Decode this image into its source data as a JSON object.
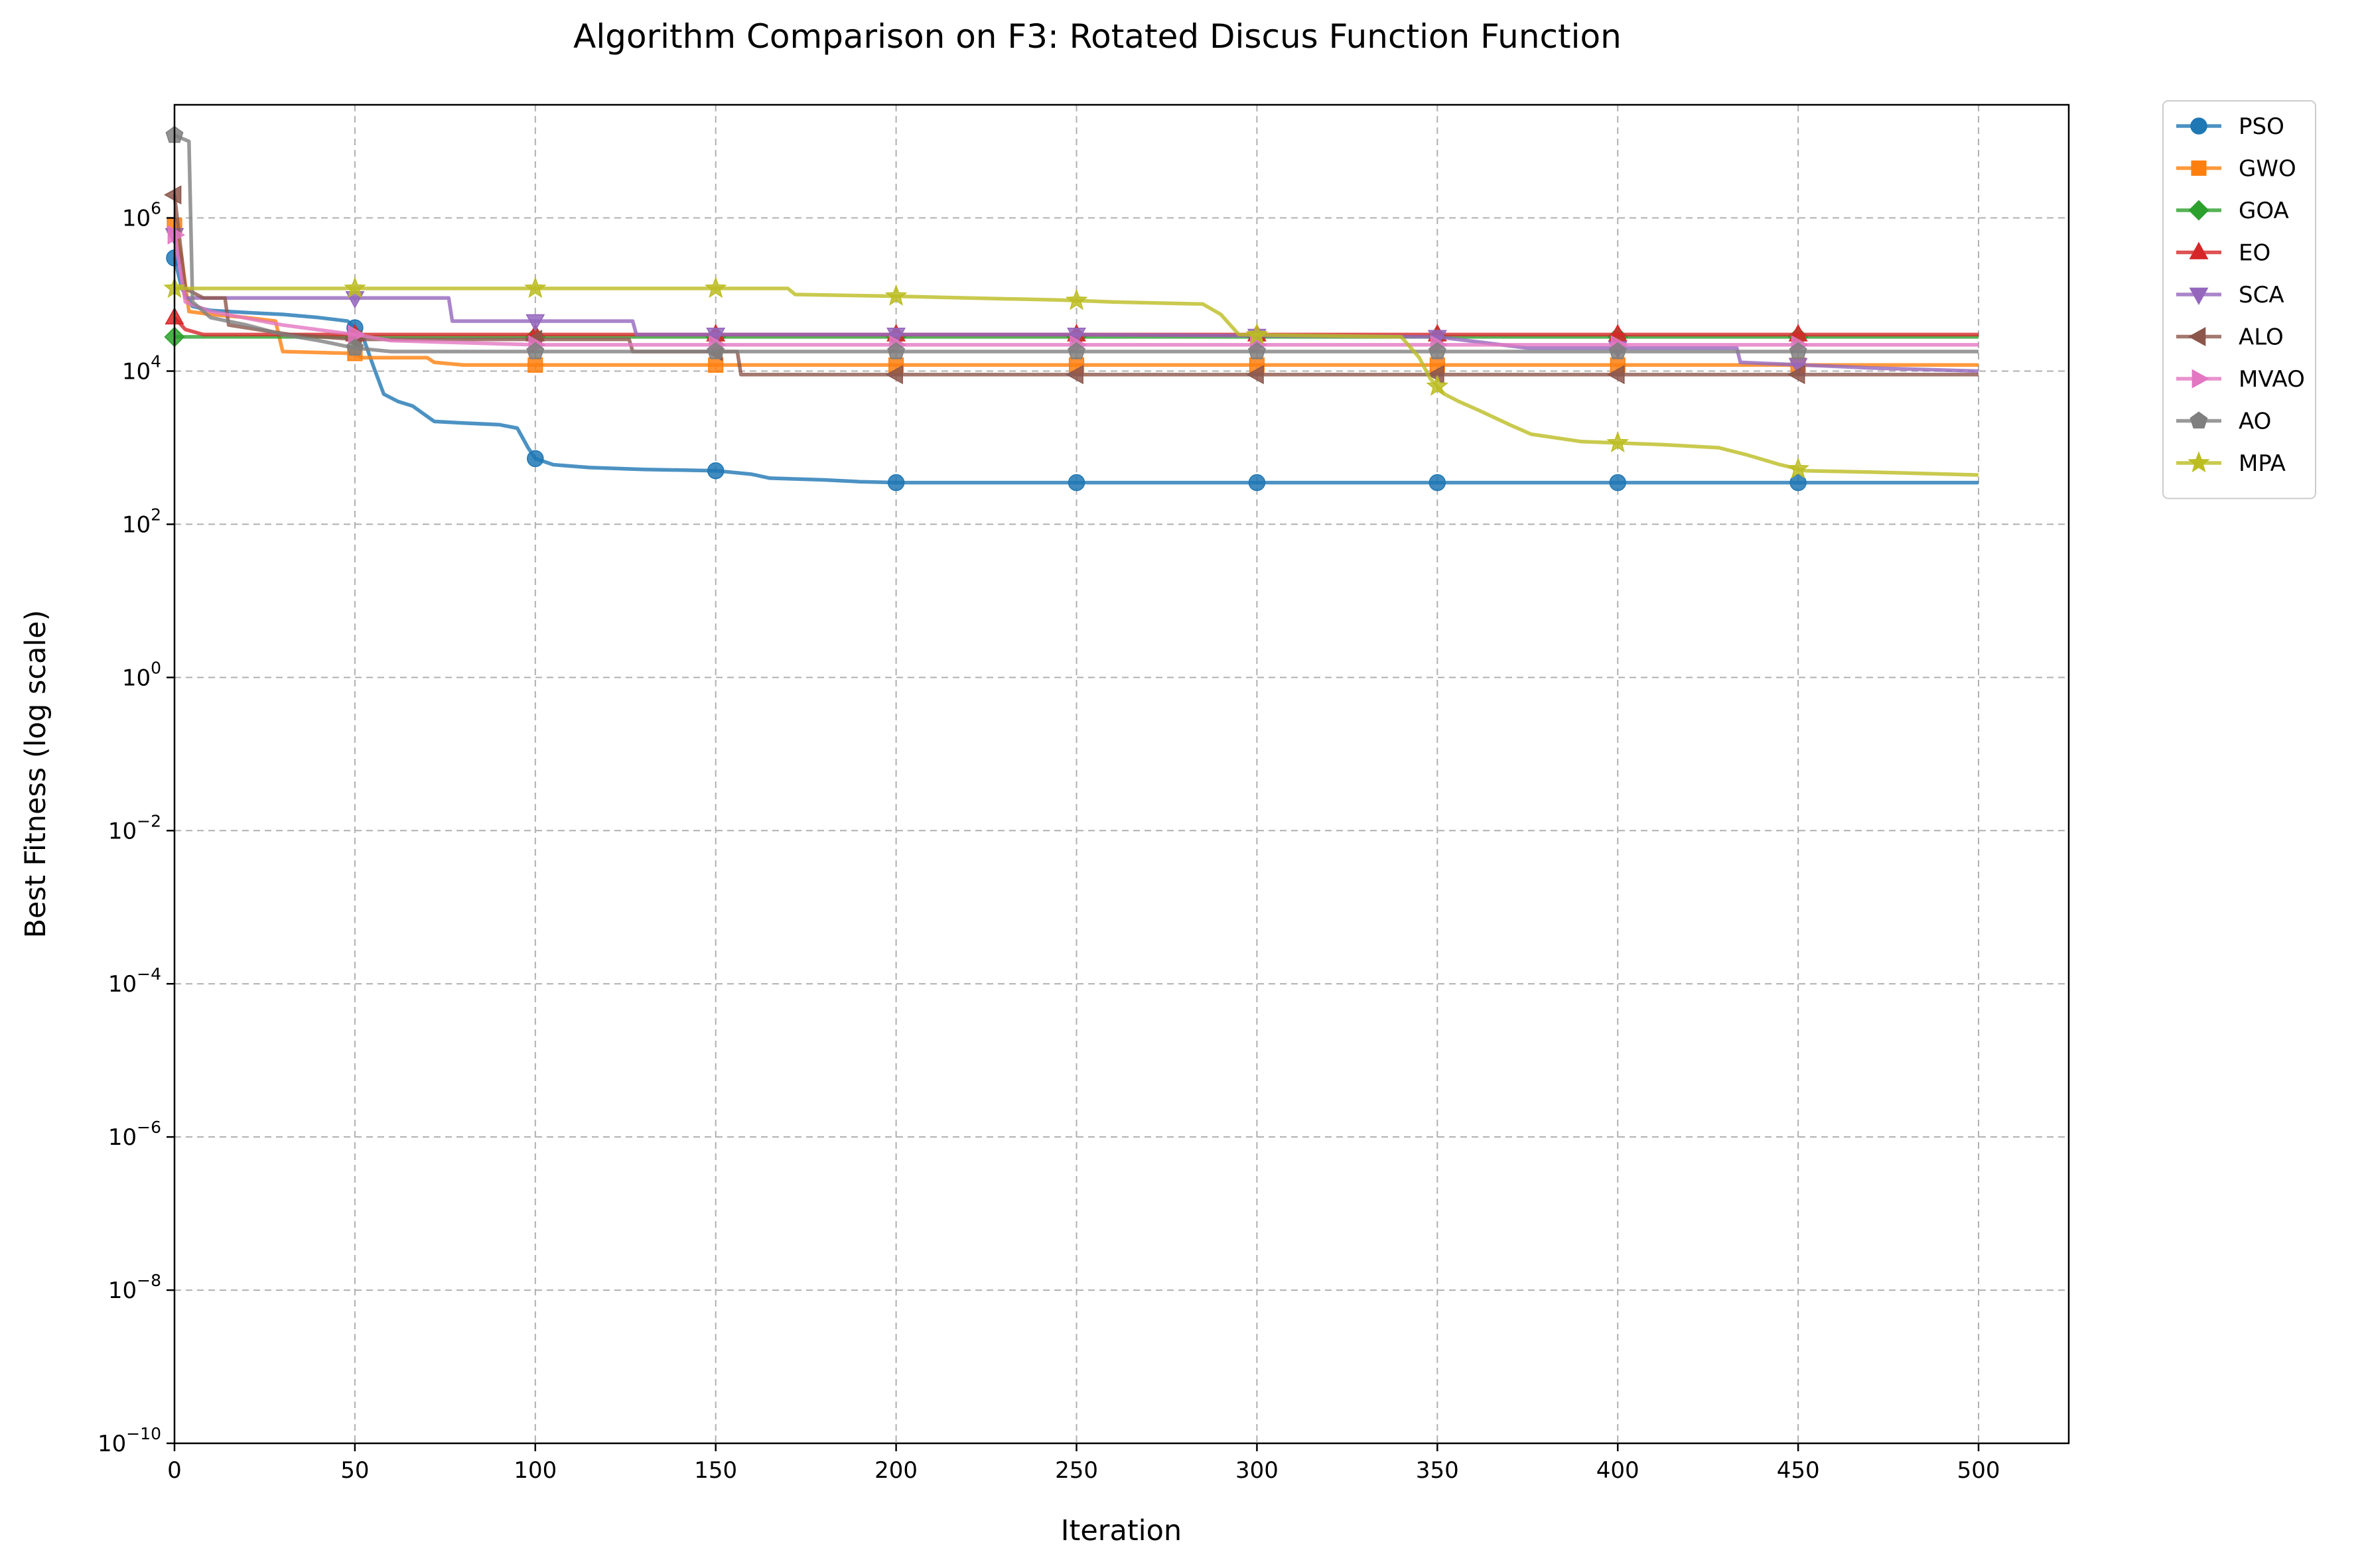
{
  "chart_data": {
    "type": "line",
    "title": "Algorithm Comparison on F3: Rotated Discus Function Function",
    "xlabel": "Iteration",
    "ylabel": "Best Fitness (log scale)",
    "xlim": [
      0,
      525
    ],
    "ylim": [
      1e-10,
      30000000.0
    ],
    "yscale": "log",
    "grid": true,
    "legend_position": "outside-top-right",
    "x_ticks": [
      0,
      50,
      100,
      150,
      200,
      250,
      300,
      350,
      400,
      450,
      500
    ],
    "x_tick_labels": [
      "0",
      "50",
      "100",
      "150",
      "200",
      "250",
      "300",
      "350",
      "400",
      "450",
      "500"
    ],
    "y_ticks": [
      {
        "value": 1e-10,
        "base": "10",
        "exp": "−10"
      },
      {
        "value": 1e-08,
        "base": "10",
        "exp": "−8"
      },
      {
        "value": 1e-06,
        "base": "10",
        "exp": "−6"
      },
      {
        "value": 0.0001,
        "base": "10",
        "exp": "−4"
      },
      {
        "value": 0.01,
        "base": "10",
        "exp": "−2"
      },
      {
        "value": 1,
        "base": "10",
        "exp": "0"
      },
      {
        "value": 100,
        "base": "10",
        "exp": "2"
      },
      {
        "value": 10000,
        "base": "10",
        "exp": "4"
      },
      {
        "value": 1000000,
        "base": "10",
        "exp": "6"
      }
    ],
    "marker_x": [
      0,
      50,
      100,
      150,
      200,
      250,
      300,
      350,
      400,
      450
    ],
    "series": [
      {
        "name": "PSO",
        "color": "#1f77b4",
        "marker": "circle",
        "points": [
          [
            0,
            300000
          ],
          [
            2,
            120000
          ],
          [
            5,
            70000
          ],
          [
            10,
            62000
          ],
          [
            20,
            58000
          ],
          [
            30,
            55000
          ],
          [
            40,
            50000
          ],
          [
            48,
            45000
          ],
          [
            52,
            30000
          ],
          [
            55,
            12000
          ],
          [
            58,
            5000
          ],
          [
            62,
            4000
          ],
          [
            66,
            3500
          ],
          [
            68,
            3000
          ],
          [
            72,
            2200
          ],
          [
            80,
            2100
          ],
          [
            90,
            2000
          ],
          [
            95,
            1800
          ],
          [
            98,
            1000
          ],
          [
            100,
            720
          ],
          [
            105,
            600
          ],
          [
            115,
            550
          ],
          [
            130,
            520
          ],
          [
            150,
            500
          ],
          [
            160,
            450
          ],
          [
            165,
            400
          ],
          [
            180,
            380
          ],
          [
            190,
            360
          ],
          [
            200,
            350
          ],
          [
            250,
            350
          ],
          [
            300,
            350
          ],
          [
            350,
            350
          ],
          [
            400,
            350
          ],
          [
            450,
            350
          ],
          [
            500,
            350
          ]
        ]
      },
      {
        "name": "GWO",
        "color": "#ff7f0e",
        "marker": "square",
        "points": [
          [
            0,
            800000
          ],
          [
            2,
            300000
          ],
          [
            4,
            60000
          ],
          [
            10,
            55000
          ],
          [
            20,
            50000
          ],
          [
            28,
            45000
          ],
          [
            30,
            18000
          ],
          [
            50,
            17000
          ],
          [
            52,
            15000
          ],
          [
            70,
            15000
          ],
          [
            72,
            13000
          ],
          [
            80,
            12000
          ],
          [
            150,
            12000
          ],
          [
            500,
            12000
          ]
        ]
      },
      {
        "name": "GOA",
        "color": "#2ca02c",
        "marker": "diamond",
        "points": [
          [
            0,
            28000
          ],
          [
            500,
            28000
          ]
        ]
      },
      {
        "name": "EO",
        "color": "#d62728",
        "marker": "triangle-up",
        "points": [
          [
            0,
            50000
          ],
          [
            3,
            35000
          ],
          [
            8,
            30000
          ],
          [
            50,
            30000
          ],
          [
            500,
            30000
          ]
        ]
      },
      {
        "name": "SCA",
        "color": "#9467bd",
        "marker": "triangle-down",
        "points": [
          [
            0,
            600000
          ],
          [
            3,
            90000
          ],
          [
            76,
            90000
          ],
          [
            77,
            45000
          ],
          [
            127,
            45000
          ],
          [
            128,
            30000
          ],
          [
            250,
            30000
          ],
          [
            350,
            28000
          ],
          [
            375,
            20000
          ],
          [
            433,
            20000
          ],
          [
            434,
            13000
          ],
          [
            470,
            11000
          ],
          [
            500,
            10000
          ]
        ]
      },
      {
        "name": "ALO",
        "color": "#8c564b",
        "marker": "triangle-left",
        "points": [
          [
            0,
            2000000
          ],
          [
            3,
            120000
          ],
          [
            8,
            90000
          ],
          [
            14,
            90000
          ],
          [
            15,
            40000
          ],
          [
            32,
            30000
          ],
          [
            50,
            26000
          ],
          [
            126,
            26000
          ],
          [
            127,
            18000
          ],
          [
            156,
            18000
          ],
          [
            157,
            9000
          ],
          [
            500,
            9000
          ]
        ]
      },
      {
        "name": "MVAO",
        "color": "#e377c2",
        "marker": "triangle-right",
        "points": [
          [
            0,
            600000
          ],
          [
            3,
            80000
          ],
          [
            10,
            60000
          ],
          [
            30,
            40000
          ],
          [
            50,
            30000
          ],
          [
            60,
            25000
          ],
          [
            100,
            22000
          ],
          [
            500,
            22000
          ]
        ]
      },
      {
        "name": "AO",
        "color": "#7f7f7f",
        "marker": "pentagon",
        "points": [
          [
            0,
            12000000
          ],
          [
            4,
            10000000
          ],
          [
            5,
            80000
          ],
          [
            10,
            50000
          ],
          [
            20,
            40000
          ],
          [
            30,
            30000
          ],
          [
            40,
            25000
          ],
          [
            50,
            20000
          ],
          [
            60,
            18000
          ],
          [
            500,
            18000
          ]
        ]
      },
      {
        "name": "MPA",
        "color": "#bcbd22",
        "marker": "star",
        "points": [
          [
            0,
            120000
          ],
          [
            170,
            120000
          ],
          [
            172,
            100000
          ],
          [
            200,
            95000
          ],
          [
            220,
            90000
          ],
          [
            245,
            85000
          ],
          [
            260,
            80000
          ],
          [
            285,
            75000
          ],
          [
            290,
            55000
          ],
          [
            295,
            30000
          ],
          [
            340,
            28000
          ],
          [
            345,
            15000
          ],
          [
            348,
            8000
          ],
          [
            352,
            5000
          ],
          [
            356,
            4000
          ],
          [
            362,
            3000
          ],
          [
            370,
            2000
          ],
          [
            376,
            1500
          ],
          [
            385,
            1300
          ],
          [
            390,
            1200
          ],
          [
            412,
            1100
          ],
          [
            428,
            1000
          ],
          [
            436,
            800
          ],
          [
            445,
            600
          ],
          [
            452,
            500
          ],
          [
            470,
            480
          ],
          [
            500,
            440
          ]
        ]
      }
    ]
  }
}
